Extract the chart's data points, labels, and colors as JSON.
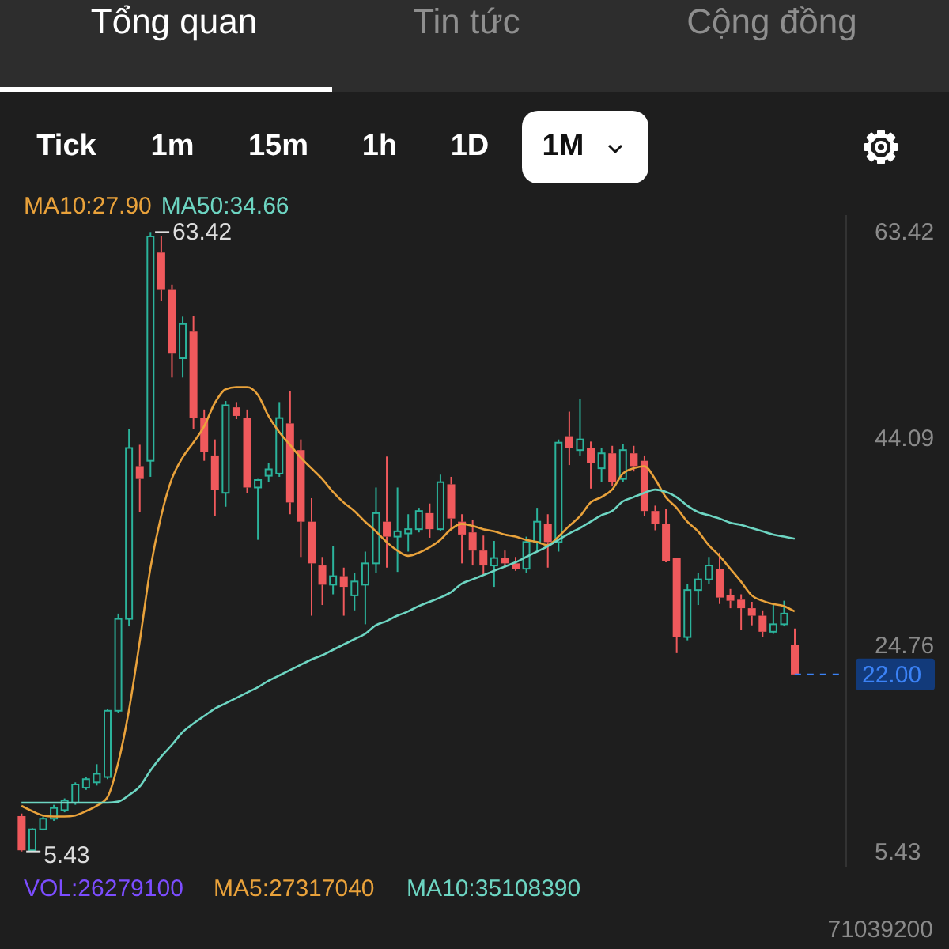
{
  "chart_data": {
    "type": "candlestick",
    "categories": [
      null,
      null,
      null,
      null,
      null,
      null,
      null,
      null,
      null,
      null,
      null,
      null,
      null,
      null,
      null,
      null,
      null,
      null,
      null,
      null,
      null,
      null,
      null,
      null,
      null,
      null,
      null,
      null,
      null,
      null,
      null,
      null,
      null,
      null,
      null,
      null,
      null,
      null,
      null,
      null,
      null,
      null,
      null,
      null,
      null,
      null,
      null,
      null,
      null,
      null,
      null,
      null,
      null,
      null,
      null,
      null,
      null,
      null,
      null,
      null,
      null,
      null,
      null,
      null,
      null,
      null,
      null,
      null,
      null,
      null,
      null,
      null,
      null
    ],
    "ohlc": [
      [
        8.74,
        8.98,
        5.43,
        5.54
      ],
      [
        5.54,
        7.6,
        5.5,
        7.5
      ],
      [
        7.5,
        8.7,
        7.4,
        8.5
      ],
      [
        8.5,
        9.8,
        8.3,
        9.5
      ],
      [
        9.3,
        10.4,
        9.1,
        10.2
      ],
      [
        10.0,
        11.9,
        9.8,
        11.7
      ],
      [
        11.4,
        12.4,
        11.2,
        12.2
      ],
      [
        11.9,
        13.6,
        11.6,
        12.7
      ],
      [
        12.4,
        18.8,
        12.2,
        18.6
      ],
      [
        18.6,
        27.7,
        18.4,
        27.2
      ],
      [
        27.2,
        45.0,
        26.5,
        43.2
      ],
      [
        41.5,
        43.5,
        37.2,
        40.3
      ],
      [
        42.0,
        63.42,
        40.5,
        63.0
      ],
      [
        61.5,
        63.0,
        57.0,
        58.0
      ],
      [
        58.0,
        58.5,
        49.8,
        52.1
      ],
      [
        51.6,
        55.5,
        49.8,
        54.8
      ],
      [
        54.1,
        55.6,
        45.0,
        46.0
      ],
      [
        46.0,
        46.8,
        42.0,
        42.8
      ],
      [
        42.5,
        44.0,
        36.8,
        39.3
      ],
      [
        39.0,
        47.6,
        37.7,
        47.2
      ],
      [
        47.0,
        47.5,
        45.9,
        46.2
      ],
      [
        46.0,
        46.8,
        39.0,
        39.5
      ],
      [
        39.5,
        40.3,
        34.6,
        40.2
      ],
      [
        40.6,
        41.8,
        40.0,
        41.2
      ],
      [
        40.8,
        47.5,
        40.5,
        46.0
      ],
      [
        45.5,
        48.5,
        37.0,
        38.1
      ],
      [
        43.0,
        44.0,
        33.0,
        36.3
      ],
      [
        36.3,
        38.5,
        27.5,
        32.4
      ],
      [
        32.2,
        33.0,
        28.5,
        30.4
      ],
      [
        30.4,
        34.0,
        29.5,
        31.2
      ],
      [
        31.2,
        32.0,
        27.5,
        30.2
      ],
      [
        29.4,
        31.5,
        28.0,
        30.7
      ],
      [
        30.4,
        33.5,
        26.7,
        32.4
      ],
      [
        32.4,
        39.5,
        31.5,
        37.1
      ],
      [
        36.3,
        42.4,
        32.0,
        34.9
      ],
      [
        34.9,
        39.5,
        31.6,
        35.4
      ],
      [
        35.2,
        37.0,
        33.5,
        35.6
      ],
      [
        35.6,
        37.6,
        35.3,
        37.3
      ],
      [
        37.1,
        38.0,
        34.8,
        35.6
      ],
      [
        35.6,
        40.7,
        35.4,
        40.0
      ],
      [
        39.8,
        40.5,
        35.5,
        36.6
      ],
      [
        36.3,
        37.0,
        32.4,
        35.1
      ],
      [
        35.3,
        36.5,
        32.2,
        33.6
      ],
      [
        33.6,
        35.0,
        31.3,
        32.2
      ],
      [
        32.2,
        34.5,
        30.2,
        32.9
      ],
      [
        32.9,
        33.6,
        32.0,
        32.4
      ],
      [
        32.4,
        33.0,
        31.7,
        31.9
      ],
      [
        31.9,
        34.9,
        31.5,
        34.4
      ],
      [
        34.4,
        37.6,
        33.6,
        36.3
      ],
      [
        36.1,
        37.0,
        32.0,
        34.4
      ],
      [
        34.4,
        44.0,
        33.5,
        43.7
      ],
      [
        44.3,
        46.6,
        41.6,
        43.2
      ],
      [
        43.0,
        47.8,
        42.5,
        44.0
      ],
      [
        43.2,
        43.8,
        39.4,
        41.8
      ],
      [
        41.3,
        43.2,
        40.0,
        42.7
      ],
      [
        42.7,
        43.4,
        39.6,
        40.0
      ],
      [
        40.3,
        43.6,
        40.0,
        43.0
      ],
      [
        42.7,
        43.4,
        41.0,
        41.5
      ],
      [
        42.0,
        42.5,
        36.8,
        37.3
      ],
      [
        37.3,
        37.8,
        35.5,
        36.1
      ],
      [
        36.1,
        37.5,
        32.5,
        32.6
      ],
      [
        32.9,
        32.9,
        24.0,
        25.5
      ],
      [
        25.5,
        30.5,
        25.2,
        29.9
      ],
      [
        29.9,
        31.5,
        28.5,
        30.9
      ],
      [
        30.9,
        33.0,
        30.5,
        32.2
      ],
      [
        31.9,
        33.4,
        28.6,
        29.2
      ],
      [
        29.4,
        30.0,
        28.2,
        28.9
      ],
      [
        29.0,
        29.5,
        26.2,
        28.2
      ],
      [
        28.2,
        28.8,
        26.6,
        27.5
      ],
      [
        27.5,
        28.0,
        25.5,
        26.0
      ],
      [
        26.0,
        28.5,
        25.8,
        26.7
      ],
      [
        26.7,
        28.9,
        26.5,
        27.7
      ],
      [
        24.8,
        26.3,
        22.0,
        22.0
      ]
    ],
    "colors": [
      "#f0595c",
      "#2bb39b",
      "#2bb39b",
      "#2bb39b",
      "#2bb39b",
      "#2bb39b",
      "#2bb39b",
      "#2bb39b",
      "#2bb39b",
      "#2bb39b",
      "#2bb39b",
      "#f0595c",
      "#2bb39b",
      "#f0595c",
      "#f0595c",
      "#2bb39b",
      "#f0595c",
      "#f0595c",
      "#f0595c",
      "#2bb39b",
      "#f0595c",
      "#f0595c",
      "#2bb39b",
      "#2bb39b",
      "#2bb39b",
      "#f0595c",
      "#f0595c",
      "#f0595c",
      "#f0595c",
      "#2bb39b",
      "#f0595c",
      "#2bb39b",
      "#2bb39b",
      "#2bb39b",
      "#f0595c",
      "#2bb39b",
      "#2bb39b",
      "#2bb39b",
      "#f0595c",
      "#2bb39b",
      "#f0595c",
      "#f0595c",
      "#f0595c",
      "#f0595c",
      "#2bb39b",
      "#f0595c",
      "#f0595c",
      "#2bb39b",
      "#2bb39b",
      "#f0595c",
      "#2bb39b",
      "#f0595c",
      "#2bb39b",
      "#f0595c",
      "#2bb39b",
      "#f0595c",
      "#2bb39b",
      "#f0595c",
      "#f0595c",
      "#f0595c",
      "#f0595c",
      "#f0595c",
      "#2bb39b",
      "#2bb39b",
      "#2bb39b",
      "#f0595c",
      "#f0595c",
      "#f0595c",
      "#f0595c",
      "#f0595c",
      "#2bb39b",
      "#2bb39b",
      "#f0595c"
    ],
    "series": [
      {
        "name": "MA10:27.90",
        "type": "line",
        "color": "#e9a23b",
        "values": [
          9.7,
          9.2,
          8.8,
          8.7,
          8.7,
          8.8,
          9.2,
          9.7,
          10.5,
          13.7,
          18.6,
          25.0,
          31.9,
          36.8,
          40.3,
          42.3,
          43.7,
          45.2,
          47.4,
          48.7,
          48.9,
          48.9,
          48.2,
          46.2,
          44.7,
          43.5,
          42.3,
          41.3,
          40.3,
          39.1,
          38.1,
          37.3,
          36.3,
          35.4,
          34.4,
          33.6,
          33.1,
          33.4,
          33.9,
          34.6,
          35.6,
          36.1,
          35.9,
          35.6,
          35.4,
          35.1,
          34.9,
          34.6,
          34.4,
          34.1,
          34.9,
          35.9,
          36.8,
          38.1,
          38.6,
          39.3,
          40.8,
          41.3,
          41.5,
          40.3,
          38.6,
          37.6,
          36.3,
          35.4,
          34.1,
          33.1,
          31.9,
          30.7,
          29.4,
          28.9,
          28.6,
          28.4,
          27.9
        ]
      },
      {
        "name": "MA50:34.66",
        "type": "line",
        "color": "#6dd5c2",
        "values": [
          10.0,
          10.0,
          10.0,
          10.0,
          10.0,
          10.0,
          10.0,
          10.0,
          10.0,
          10.1,
          10.7,
          11.5,
          13.0,
          14.3,
          15.4,
          16.6,
          17.4,
          18.1,
          18.8,
          19.3,
          19.8,
          20.3,
          20.8,
          21.4,
          21.9,
          22.4,
          22.9,
          23.4,
          23.8,
          24.3,
          24.8,
          25.3,
          25.8,
          26.6,
          27.0,
          27.5,
          27.9,
          28.4,
          28.8,
          29.2,
          29.7,
          30.5,
          30.9,
          31.3,
          31.7,
          32.1,
          32.5,
          33.0,
          33.5,
          34.0,
          34.6,
          35.2,
          35.7,
          36.3,
          36.9,
          37.3,
          38.2,
          38.6,
          39.0,
          39.3,
          39.1,
          38.6,
          37.8,
          37.2,
          36.9,
          36.6,
          36.2,
          36.0,
          35.7,
          35.4,
          35.1,
          34.9,
          34.7
        ]
      }
    ],
    "ylim": [
      4,
      65
    ],
    "yticks": [
      63.42,
      44.09,
      24.76,
      5.43
    ],
    "ref_lines": [
      {
        "axis": "y",
        "value": 22.0,
        "label": "22.00",
        "color": "#3b82f6",
        "line_style": "dashed"
      }
    ],
    "legend": "top",
    "annotations": [
      "Tổng quan",
      "Tin tức",
      "Cộng đồng",
      "Tick",
      "1m",
      "15m",
      "1h",
      "1D",
      "1M",
      "VOL:26279100",
      "MA5:27317040",
      "MA10:35108390",
      "71039200",
      "63.42",
      "5.43"
    ]
  }
}
